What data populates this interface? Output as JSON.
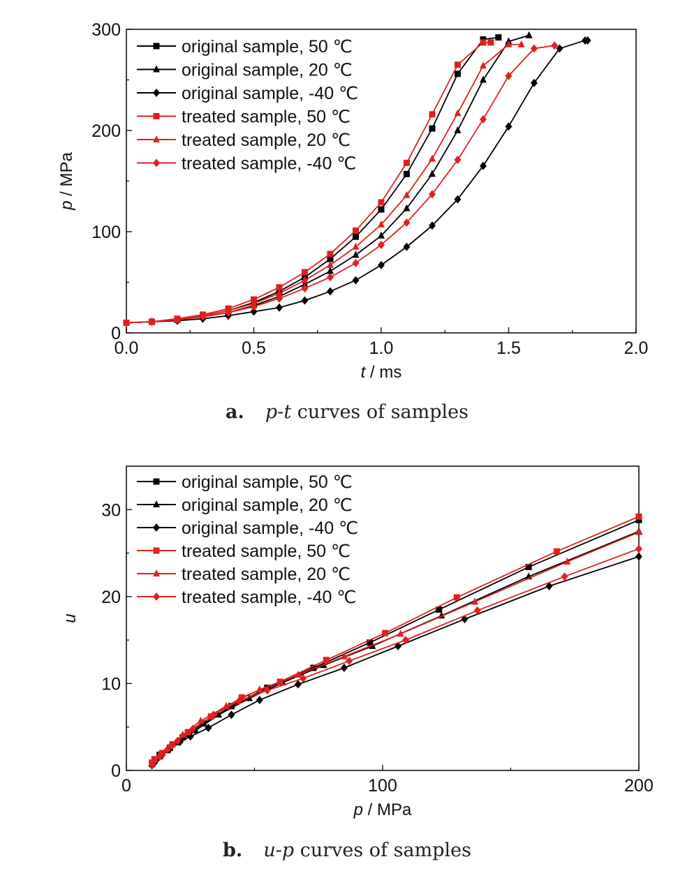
{
  "chart_data": [
    {
      "type": "line",
      "xlabel": {
        "var": "t",
        "unit": " / ms"
      },
      "ylabel": {
        "var": "p",
        "unit": " / MPa"
      },
      "xlim": [
        0,
        2.0
      ],
      "ylim": [
        0,
        300
      ],
      "xticks": [
        0.0,
        0.5,
        1.0,
        1.5,
        2.0
      ],
      "xtick_labels": [
        "0.0",
        "0.5",
        "1.0",
        "1.5",
        "2.0"
      ],
      "yticks": [
        0,
        100,
        200,
        300
      ],
      "ytick_labels": [
        "0",
        "100",
        "200",
        "300"
      ],
      "legend_position": "top-left",
      "series": [
        {
          "name": "original sample, 50 ℃",
          "color": "#000000",
          "marker": "square",
          "x": [
            0,
            0.1,
            0.2,
            0.3,
            0.4,
            0.5,
            0.6,
            0.7,
            0.8,
            0.9,
            1.0,
            1.1,
            1.2,
            1.3,
            1.4,
            1.46
          ],
          "y": [
            10,
            11,
            13,
            17,
            22,
            30,
            41,
            55,
            73,
            95,
            122,
            157,
            202,
            256,
            290,
            292
          ]
        },
        {
          "name": "original sample, 20 ℃",
          "color": "#000000",
          "marker": "triangle",
          "x": [
            0,
            0.1,
            0.2,
            0.3,
            0.4,
            0.5,
            0.6,
            0.7,
            0.8,
            0.9,
            1.0,
            1.1,
            1.2,
            1.3,
            1.4,
            1.5,
            1.58
          ],
          "y": [
            10,
            11,
            13,
            16,
            20,
            27,
            36,
            48,
            61,
            77,
            96,
            123,
            157,
            200,
            250,
            288,
            294
          ]
        },
        {
          "name": "original sample, -40 ℃",
          "color": "#000000",
          "marker": "diamond",
          "x": [
            0,
            0.1,
            0.2,
            0.3,
            0.4,
            0.5,
            0.6,
            0.7,
            0.8,
            0.9,
            1.0,
            1.1,
            1.2,
            1.3,
            1.4,
            1.5,
            1.6,
            1.7,
            1.8,
            1.81
          ],
          "y": [
            10,
            11,
            12,
            14,
            17,
            21,
            25,
            32,
            41,
            52,
            67,
            85,
            106,
            132,
            165,
            204,
            247,
            281,
            289,
            289
          ]
        },
        {
          "name": "treated sample, 50 ℃",
          "color": "#e02020",
          "marker": "square",
          "x": [
            0,
            0.1,
            0.2,
            0.3,
            0.4,
            0.5,
            0.6,
            0.7,
            0.8,
            0.9,
            1.0,
            1.1,
            1.2,
            1.3,
            1.4,
            1.43
          ],
          "y": [
            10,
            11,
            14,
            18,
            24,
            33,
            45,
            60,
            78,
            101,
            129,
            168,
            216,
            265,
            287,
            287
          ]
        },
        {
          "name": "treated sample, 20 ℃",
          "color": "#e02020",
          "marker": "triangle",
          "x": [
            0,
            0.1,
            0.2,
            0.3,
            0.4,
            0.5,
            0.6,
            0.7,
            0.8,
            0.9,
            1.0,
            1.1,
            1.2,
            1.3,
            1.4,
            1.5,
            1.55
          ],
          "y": [
            10,
            11,
            13,
            17,
            22,
            29,
            39,
            52,
            67,
            85,
            107,
            136,
            172,
            217,
            264,
            285,
            285
          ]
        },
        {
          "name": "treated sample, -40 ℃",
          "color": "#e02020",
          "marker": "diamond",
          "x": [
            0,
            0.1,
            0.2,
            0.3,
            0.4,
            0.5,
            0.6,
            0.7,
            0.8,
            0.9,
            1.0,
            1.1,
            1.2,
            1.3,
            1.4,
            1.5,
            1.6,
            1.68
          ],
          "y": [
            10,
            11,
            13,
            16,
            20,
            26,
            34,
            44,
            55,
            69,
            87,
            109,
            137,
            171,
            211,
            254,
            281,
            284
          ]
        }
      ]
    },
    {
      "type": "line",
      "xlabel": {
        "var": "p",
        "unit": " / MPa"
      },
      "ylabel": {
        "var": "u",
        "unit": ""
      },
      "xlim": [
        0,
        200
      ],
      "ylim": [
        0,
        35
      ],
      "xticks": [
        0,
        100,
        200
      ],
      "xtick_labels": [
        "0",
        "100",
        "200"
      ],
      "yticks": [
        0,
        10,
        20,
        30
      ],
      "ytick_labels": [
        "0",
        "10",
        "20",
        "30"
      ],
      "legend_position": "top-left",
      "series": [
        {
          "name": "original sample, 50 ℃",
          "color": "#000000",
          "marker": "square",
          "x": [
            10,
            11,
            13,
            17,
            22,
            30,
            41,
            55,
            73,
            95,
            122,
            157,
            200
          ],
          "y": [
            0.8,
            1.2,
            1.8,
            2.6,
            3.8,
            5.4,
            7.4,
            9.5,
            11.8,
            14.7,
            18.5,
            23.4,
            28.8
          ]
        },
        {
          "name": "original sample, 20 ℃",
          "color": "#000000",
          "marker": "triangle",
          "x": [
            10,
            11,
            13,
            16,
            20,
            27,
            36,
            48,
            61,
            77,
            96,
            123,
            157,
            200
          ],
          "y": [
            0.7,
            1.1,
            1.6,
            2.3,
            3.2,
            4.6,
            6.4,
            8.3,
            10.1,
            12.1,
            14.3,
            17.8,
            22.3,
            27.5
          ]
        },
        {
          "name": "original sample, -40 ℃",
          "color": "#000000",
          "marker": "diamond",
          "x": [
            10,
            11,
            12,
            14,
            17,
            21,
            25,
            32,
            41,
            52,
            67,
            85,
            106,
            132,
            165,
            200
          ],
          "y": [
            0.6,
            0.9,
            1.3,
            1.8,
            2.5,
            3.3,
            3.9,
            4.9,
            6.4,
            8.1,
            9.9,
            11.8,
            14.3,
            17.4,
            21.2,
            24.6
          ]
        },
        {
          "name": "treated sample, 50 ℃",
          "color": "#e02020",
          "marker": "square",
          "x": [
            10,
            11,
            14,
            18,
            24,
            33,
            45,
            60,
            78,
            101,
            129,
            168,
            200
          ],
          "y": [
            0.9,
            1.3,
            2.0,
            3.0,
            4.4,
            6.2,
            8.4,
            10.2,
            12.7,
            15.8,
            19.9,
            25.2,
            29.2
          ]
        },
        {
          "name": "treated sample, 20 ℃",
          "color": "#e02020",
          "marker": "triangle",
          "x": [
            10,
            11,
            13,
            17,
            22,
            29,
            39,
            52,
            67,
            85,
            107,
            136,
            172,
            200
          ],
          "y": [
            0.8,
            1.2,
            1.8,
            2.8,
            4.1,
            5.7,
            7.4,
            9.3,
            11.0,
            13.1,
            15.7,
            19.4,
            24.0,
            27.4
          ]
        },
        {
          "name": "treated sample, -40 ℃",
          "color": "#e02020",
          "marker": "diamond",
          "x": [
            10,
            11,
            13,
            16,
            20,
            26,
            34,
            44,
            55,
            69,
            87,
            109,
            137,
            171,
            200
          ],
          "y": [
            0.7,
            1.1,
            1.6,
            2.4,
            3.4,
            4.8,
            6.4,
            8.0,
            9.2,
            10.6,
            12.6,
            15.0,
            18.4,
            22.3,
            25.5
          ]
        }
      ]
    }
  ],
  "captions": [
    {
      "letter": "a.",
      "var1": "p",
      "dash": "-",
      "var2": "t",
      "rest": " curves of samples"
    },
    {
      "letter": "b.",
      "var1": "u",
      "dash": "-",
      "var2": "p",
      "rest": " curves of samples"
    }
  ]
}
